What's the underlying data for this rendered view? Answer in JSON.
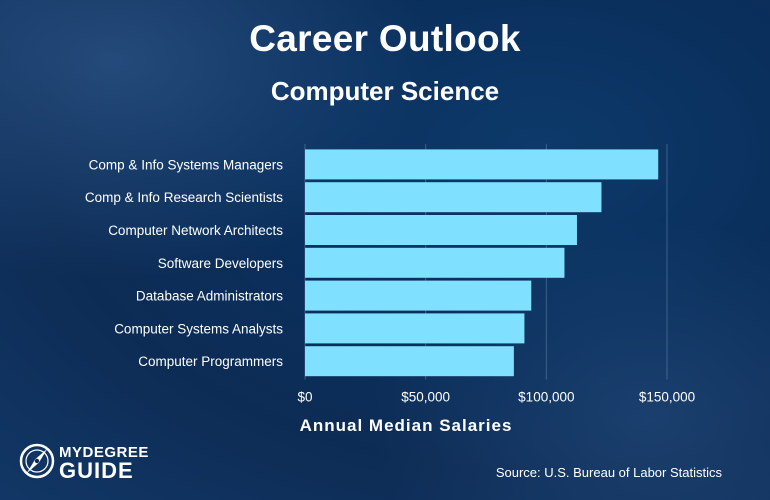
{
  "header": {
    "title": "Career Outlook",
    "subtitle": "Computer Science"
  },
  "chart_data": {
    "type": "bar",
    "orientation": "horizontal",
    "title": "Career Outlook",
    "subtitle": "Computer Science",
    "xlabel": "Annual Median Salaries",
    "ylabel": "",
    "categories": [
      "Comp & Info Systems Managers",
      "Comp & Info Research Scientists",
      "Computer Network Architects",
      "Software Developers",
      "Database Administrators",
      "Computer Systems Analysts",
      "Computer Programmers"
    ],
    "values": [
      146360,
      122840,
      112690,
      107510,
      93750,
      90920,
      86550
    ],
    "xlim": [
      0,
      150000
    ],
    "xticks": [
      0,
      50000,
      100000,
      150000
    ],
    "xtick_labels": [
      "$0",
      "$50,000",
      "$100,000",
      "$150,000"
    ],
    "grid": "vertical gridlines at tick marks",
    "legend": "none",
    "colors": {
      "bar": "#7fe0ff",
      "grid": "#5b7ea6",
      "text": "#ffffff"
    }
  },
  "footer": {
    "logo_line1": "MYDEGREE",
    "logo_line2": "GUIDE",
    "logo_icon": "compass-icon",
    "source": "Source: U.S. Bureau of Labor Statistics"
  }
}
